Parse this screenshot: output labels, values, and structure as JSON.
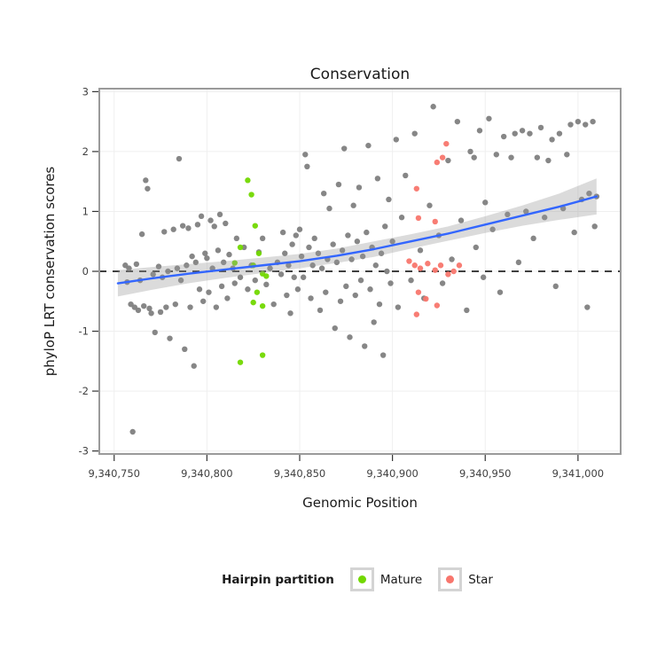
{
  "title": "Conservation",
  "axes": {
    "x_label": "Genomic Position",
    "y_label": "phyloP LRT conservation scores"
  },
  "legend": {
    "title": "Hairpin partition",
    "items": [
      {
        "label": "Mature",
        "color": "#72d800"
      },
      {
        "label": "Star",
        "color": "#f8766d"
      }
    ]
  },
  "chart_data": {
    "type": "scatter",
    "title": "Conservation",
    "xlabel": "Genomic Position",
    "ylabel": "phyloP LRT conservation scores",
    "xlim": [
      9340742,
      9341023
    ],
    "ylim": [
      -3.05,
      3.05
    ],
    "grid": true,
    "legend_position": "bottom",
    "zero_line": 0,
    "x_ticks": [
      {
        "value": 9340750,
        "label": "9,340,750"
      },
      {
        "value": 9340800,
        "label": "9,340,800"
      },
      {
        "value": 9340850,
        "label": "9,340,850"
      },
      {
        "value": 9340900,
        "label": "9,340,900"
      },
      {
        "value": 9340950,
        "label": "9,340,950"
      },
      {
        "value": 9341000,
        "label": "9,341,000"
      }
    ],
    "y_ticks": [
      {
        "value": -3,
        "label": "-3"
      },
      {
        "value": -2,
        "label": "-2"
      },
      {
        "value": -1,
        "label": "-1"
      },
      {
        "value": 0,
        "label": "0"
      },
      {
        "value": 1,
        "label": "1"
      },
      {
        "value": 2,
        "label": "2"
      },
      {
        "value": 3,
        "label": "3"
      }
    ],
    "colors": {
      "other": "#808080",
      "mature": "#72d800",
      "star": "#f8766d",
      "smooth": "#3366ff",
      "band": "#999999",
      "zero_line": "#000000",
      "panel_border": "#9a9a9a",
      "grid": "#efefef",
      "tick_text": "#404040"
    },
    "series": [
      {
        "name": "Other",
        "color": "#808080",
        "points": [
          [
            9340756,
            0.1
          ],
          [
            9340757,
            -0.18
          ],
          [
            9340758,
            0.05
          ],
          [
            9340759,
            -0.55
          ],
          [
            9340760,
            -2.68
          ],
          [
            9340761,
            -0.6
          ],
          [
            9340762,
            0.12
          ],
          [
            9340763,
            -0.65
          ],
          [
            9340764,
            -0.15
          ],
          [
            9340765,
            0.62
          ],
          [
            9340766,
            -0.58
          ],
          [
            9340767,
            1.52
          ],
          [
            9340768,
            1.38
          ],
          [
            9340769,
            -0.62
          ],
          [
            9340770,
            -0.7
          ],
          [
            9340771,
            -0.05
          ],
          [
            9340772,
            -1.02
          ],
          [
            9340774,
            0.08
          ],
          [
            9340775,
            -0.68
          ],
          [
            9340776,
            -0.1
          ],
          [
            9340777,
            0.66
          ],
          [
            9340778,
            -0.6
          ],
          [
            9340779,
            0.0
          ],
          [
            9340780,
            -1.12
          ],
          [
            9340782,
            0.7
          ],
          [
            9340783,
            -0.55
          ],
          [
            9340784,
            0.05
          ],
          [
            9340785,
            1.88
          ],
          [
            9340786,
            -0.15
          ],
          [
            9340787,
            0.76
          ],
          [
            9340788,
            -1.3
          ],
          [
            9340789,
            0.1
          ],
          [
            9340790,
            0.72
          ],
          [
            9340791,
            -0.6
          ],
          [
            9340792,
            0.25
          ],
          [
            9340793,
            -1.58
          ],
          [
            9340794,
            0.15
          ],
          [
            9340795,
            0.78
          ],
          [
            9340796,
            -0.3
          ],
          [
            9340797,
            0.92
          ],
          [
            9340798,
            -0.5
          ],
          [
            9340799,
            0.3
          ],
          [
            9340800,
            0.22
          ],
          [
            9340801,
            -0.35
          ],
          [
            9340802,
            0.85
          ],
          [
            9340803,
            0.05
          ],
          [
            9340804,
            0.75
          ],
          [
            9340805,
            -0.6
          ],
          [
            9340806,
            0.35
          ],
          [
            9340807,
            0.95
          ],
          [
            9340808,
            -0.25
          ],
          [
            9340809,
            0.15
          ],
          [
            9340810,
            0.8
          ],
          [
            9340811,
            -0.45
          ],
          [
            9340812,
            0.28
          ],
          [
            9340814,
            0.05
          ],
          [
            9340815,
            -0.2
          ],
          [
            9340816,
            0.55
          ],
          [
            9340818,
            -0.1
          ],
          [
            9340820,
            0.4
          ],
          [
            9340822,
            -0.3
          ],
          [
            9340824,
            0.1
          ],
          [
            9340826,
            -0.15
          ],
          [
            9340828,
            0.32
          ],
          [
            9340830,
            0.55
          ],
          [
            9340832,
            -0.22
          ],
          [
            9340834,
            0.05
          ],
          [
            9340836,
            -0.55
          ],
          [
            9340838,
            0.15
          ],
          [
            9340840,
            -0.05
          ],
          [
            9340841,
            0.65
          ],
          [
            9340842,
            0.3
          ],
          [
            9340843,
            -0.4
          ],
          [
            9340844,
            0.1
          ],
          [
            9340845,
            -0.7
          ],
          [
            9340846,
            0.45
          ],
          [
            9340847,
            -0.1
          ],
          [
            9340848,
            0.6
          ],
          [
            9340849,
            -0.3
          ],
          [
            9340850,
            0.7
          ],
          [
            9340851,
            0.25
          ],
          [
            9340852,
            -0.1
          ],
          [
            9340853,
            1.95
          ],
          [
            9340854,
            1.75
          ],
          [
            9340855,
            0.4
          ],
          [
            9340856,
            -0.45
          ],
          [
            9340857,
            0.1
          ],
          [
            9340858,
            0.55
          ],
          [
            9340860,
            0.3
          ],
          [
            9340861,
            -0.65
          ],
          [
            9340862,
            0.05
          ],
          [
            9340863,
            1.3
          ],
          [
            9340864,
            -0.35
          ],
          [
            9340865,
            0.2
          ],
          [
            9340866,
            1.05
          ],
          [
            9340868,
            0.45
          ],
          [
            9340869,
            -0.95
          ],
          [
            9340870,
            0.15
          ],
          [
            9340871,
            1.45
          ],
          [
            9340872,
            -0.5
          ],
          [
            9340873,
            0.35
          ],
          [
            9340874,
            2.05
          ],
          [
            9340875,
            -0.25
          ],
          [
            9340876,
            0.6
          ],
          [
            9340877,
            -1.1
          ],
          [
            9340878,
            0.2
          ],
          [
            9340879,
            1.1
          ],
          [
            9340880,
            -0.4
          ],
          [
            9340881,
            0.5
          ],
          [
            9340882,
            1.4
          ],
          [
            9340883,
            -0.15
          ],
          [
            9340884,
            0.25
          ],
          [
            9340885,
            -1.25
          ],
          [
            9340886,
            0.65
          ],
          [
            9340887,
            2.1
          ],
          [
            9340888,
            -0.3
          ],
          [
            9340889,
            0.4
          ],
          [
            9340890,
            -0.85
          ],
          [
            9340891,
            0.1
          ],
          [
            9340892,
            1.55
          ],
          [
            9340893,
            -0.55
          ],
          [
            9340894,
            0.3
          ],
          [
            9340895,
            -1.4
          ],
          [
            9340896,
            0.75
          ],
          [
            9340897,
            0.0
          ],
          [
            9340898,
            1.2
          ],
          [
            9340899,
            -0.2
          ],
          [
            9340900,
            0.5
          ],
          [
            9340902,
            2.2
          ],
          [
            9340903,
            -0.6
          ],
          [
            9340905,
            0.9
          ],
          [
            9340907,
            1.6
          ],
          [
            9340910,
            -0.15
          ],
          [
            9340912,
            2.3
          ],
          [
            9340915,
            0.35
          ],
          [
            9340917,
            -0.45
          ],
          [
            9340920,
            1.1
          ],
          [
            9340922,
            2.75
          ],
          [
            9340925,
            0.6
          ],
          [
            9340927,
            -0.2
          ],
          [
            9340930,
            1.85
          ],
          [
            9340932,
            0.2
          ],
          [
            9340935,
            2.5
          ],
          [
            9340937,
            0.85
          ],
          [
            9340940,
            -0.65
          ],
          [
            9340942,
            2.0
          ],
          [
            9340944,
            1.9
          ],
          [
            9340945,
            0.4
          ],
          [
            9340947,
            2.35
          ],
          [
            9340949,
            -0.1
          ],
          [
            9340950,
            1.15
          ],
          [
            9340952,
            2.55
          ],
          [
            9340954,
            0.7
          ],
          [
            9340956,
            1.95
          ],
          [
            9340958,
            -0.35
          ],
          [
            9340960,
            2.25
          ],
          [
            9340962,
            0.95
          ],
          [
            9340964,
            1.9
          ],
          [
            9340966,
            2.3
          ],
          [
            9340968,
            0.15
          ],
          [
            9340970,
            2.35
          ],
          [
            9340972,
            1.0
          ],
          [
            9340974,
            2.3
          ],
          [
            9340976,
            0.55
          ],
          [
            9340978,
            1.9
          ],
          [
            9340980,
            2.4
          ],
          [
            9340982,
            0.9
          ],
          [
            9340984,
            1.85
          ],
          [
            9340986,
            2.2
          ],
          [
            9340988,
            -0.25
          ],
          [
            9340990,
            2.3
          ],
          [
            9340992,
            1.05
          ],
          [
            9340994,
            1.95
          ],
          [
            9340996,
            2.45
          ],
          [
            9340998,
            0.65
          ],
          [
            9341000,
            2.5
          ],
          [
            9341002,
            1.2
          ],
          [
            9341004,
            2.45
          ],
          [
            9341005,
            -0.6
          ],
          [
            9341006,
            1.3
          ],
          [
            9341008,
            2.5
          ],
          [
            9341009,
            0.75
          ],
          [
            9341010,
            1.25
          ]
        ]
      },
      {
        "name": "Mature",
        "color": "#72d800",
        "points": [
          [
            9340822,
            1.52
          ],
          [
            9340824,
            1.28
          ],
          [
            9340826,
            0.76
          ],
          [
            9340818,
            0.4
          ],
          [
            9340815,
            0.14
          ],
          [
            9340825,
            0.1
          ],
          [
            9340828,
            0.3
          ],
          [
            9340830,
            -0.04
          ],
          [
            9340832,
            -0.08
          ],
          [
            9340827,
            -0.35
          ],
          [
            9340825,
            -0.52
          ],
          [
            9340830,
            -0.58
          ],
          [
            9340818,
            -1.52
          ],
          [
            9340830,
            -1.4
          ]
        ]
      },
      {
        "name": "Star",
        "color": "#f8766d",
        "points": [
          [
            9340929,
            2.13
          ],
          [
            9340927,
            1.9
          ],
          [
            9340924,
            1.82
          ],
          [
            9340913,
            1.38
          ],
          [
            9340914,
            0.89
          ],
          [
            9340923,
            0.83
          ],
          [
            9340909,
            0.17
          ],
          [
            9340912,
            0.1
          ],
          [
            9340915,
            0.05
          ],
          [
            9340919,
            0.13
          ],
          [
            9340923,
            0.02
          ],
          [
            9340926,
            0.1
          ],
          [
            9340930,
            -0.05
          ],
          [
            9340933,
            0.0
          ],
          [
            9340936,
            0.1
          ],
          [
            9340914,
            -0.35
          ],
          [
            9340918,
            -0.46
          ],
          [
            9340924,
            -0.57
          ],
          [
            9340913,
            -0.72
          ]
        ]
      }
    ],
    "smooth": {
      "color": "#3366ff",
      "line": [
        [
          9340752,
          -0.2
        ],
        [
          9340770,
          -0.12
        ],
        [
          9340790,
          -0.04
        ],
        [
          9340810,
          0.03
        ],
        [
          9340830,
          0.1
        ],
        [
          9340850,
          0.17
        ],
        [
          9340870,
          0.26
        ],
        [
          9340890,
          0.37
        ],
        [
          9340910,
          0.5
        ],
        [
          9340930,
          0.63
        ],
        [
          9340950,
          0.78
        ],
        [
          9340970,
          0.93
        ],
        [
          9340990,
          1.08
        ],
        [
          9341010,
          1.25
        ]
      ],
      "upper": [
        [
          9340752,
          0.02
        ],
        [
          9340770,
          0.07
        ],
        [
          9340790,
          0.12
        ],
        [
          9340810,
          0.17
        ],
        [
          9340830,
          0.23
        ],
        [
          9340850,
          0.29
        ],
        [
          9340870,
          0.38
        ],
        [
          9340890,
          0.5
        ],
        [
          9340910,
          0.62
        ],
        [
          9340930,
          0.75
        ],
        [
          9340950,
          0.92
        ],
        [
          9340970,
          1.1
        ],
        [
          9340990,
          1.3
        ],
        [
          9341010,
          1.55
        ]
      ],
      "lower": [
        [
          9340752,
          -0.42
        ],
        [
          9340770,
          -0.31
        ],
        [
          9340790,
          -0.2
        ],
        [
          9340810,
          -0.11
        ],
        [
          9340830,
          -0.03
        ],
        [
          9340850,
          0.05
        ],
        [
          9340870,
          0.14
        ],
        [
          9340890,
          0.24
        ],
        [
          9340910,
          0.38
        ],
        [
          9340930,
          0.51
        ],
        [
          9340950,
          0.64
        ],
        [
          9340970,
          0.76
        ],
        [
          9340990,
          0.86
        ],
        [
          9341010,
          0.95
        ]
      ]
    }
  }
}
